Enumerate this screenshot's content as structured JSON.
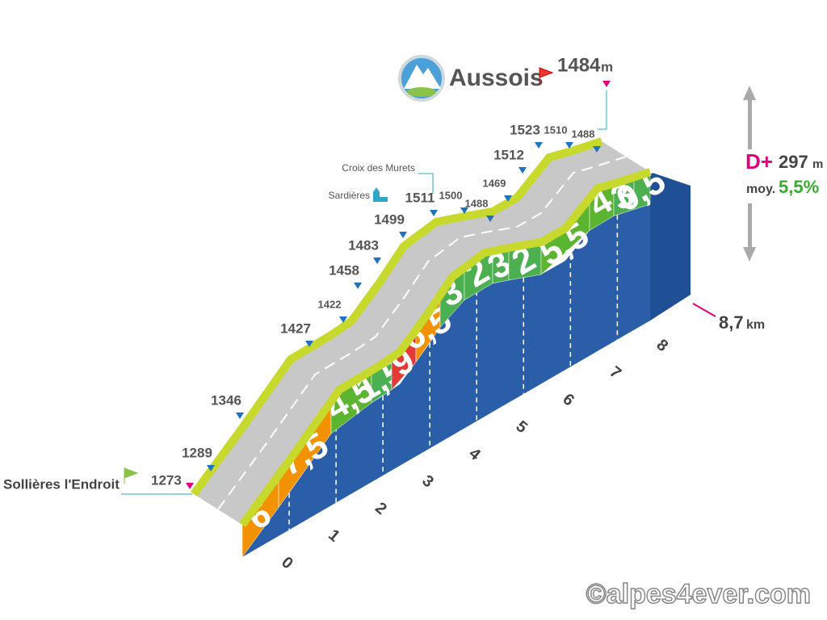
{
  "start": {
    "name": "Sollières l'Endroit",
    "altitude": "1273"
  },
  "summit": {
    "name": "Aussois",
    "altitude": "1484",
    "unit": "m"
  },
  "altitudes": [
    "1289",
    "1346",
    "1427",
    "1422",
    "1458",
    "1483",
    "1499",
    "1511",
    "1500",
    "1488",
    "1469",
    "1512",
    "1523",
    "1510",
    "1488"
  ],
  "landmarks": [
    "Croix des Murets",
    "Sardières"
  ],
  "gradients": [
    "6",
    "7,5",
    "4,5",
    "1,5",
    "9",
    "6,5",
    "3",
    "2",
    "3",
    "2",
    "5,5",
    "4",
    "3",
    "0,5"
  ],
  "km_ticks": [
    "0",
    "1",
    "2",
    "3",
    "4",
    "5",
    "6",
    "7",
    "8"
  ],
  "distance": {
    "value": "8,7",
    "unit": "km"
  },
  "stats": {
    "gain_label": "D+",
    "gain": "297",
    "gain_unit": "m",
    "avg_label": "moy.",
    "avg": "5,5%"
  },
  "credit": "©alpes4ever.com"
}
